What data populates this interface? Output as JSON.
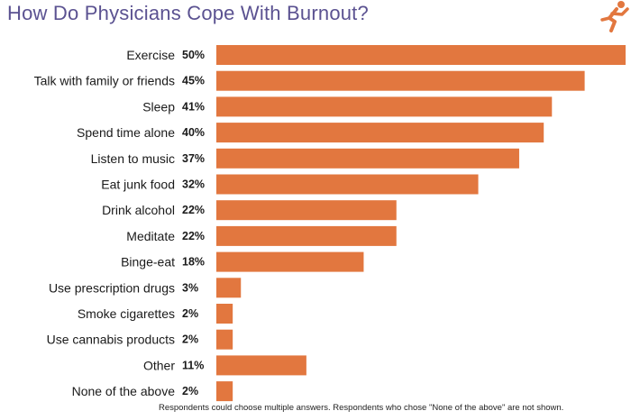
{
  "chart_data": {
    "type": "bar",
    "orientation": "horizontal",
    "title": "How Do Physicians Cope With Burnout?",
    "categories": [
      "Exercise",
      "Talk with family or friends",
      "Sleep",
      "Spend time alone",
      "Listen to music",
      "Eat junk food",
      "Drink alcohol",
      "Meditate",
      "Binge-eat",
      "Use prescription drugs",
      "Smoke cigarettes",
      "Use cannabis products",
      "Other",
      "None of the above"
    ],
    "values": [
      50,
      45,
      41,
      40,
      37,
      32,
      22,
      22,
      18,
      3,
      2,
      2,
      11,
      2
    ],
    "value_labels": [
      "50%",
      "45%",
      "41%",
      "40%",
      "37%",
      "32%",
      "22%",
      "22%",
      "18%",
      "3%",
      "2%",
      "2%",
      "11%",
      "2%"
    ],
    "unit": "%",
    "xlim": [
      0,
      50
    ],
    "bar_color": "#e2773f",
    "grid": false,
    "legend": "none",
    "footnote": "Respondents could choose multiple answers. Respondents who chose \"None of the above\" are not shown."
  },
  "colors": {
    "title": "#5b5291",
    "accent": "#e2773f"
  },
  "logo": {
    "icon": "running-person-icon"
  }
}
